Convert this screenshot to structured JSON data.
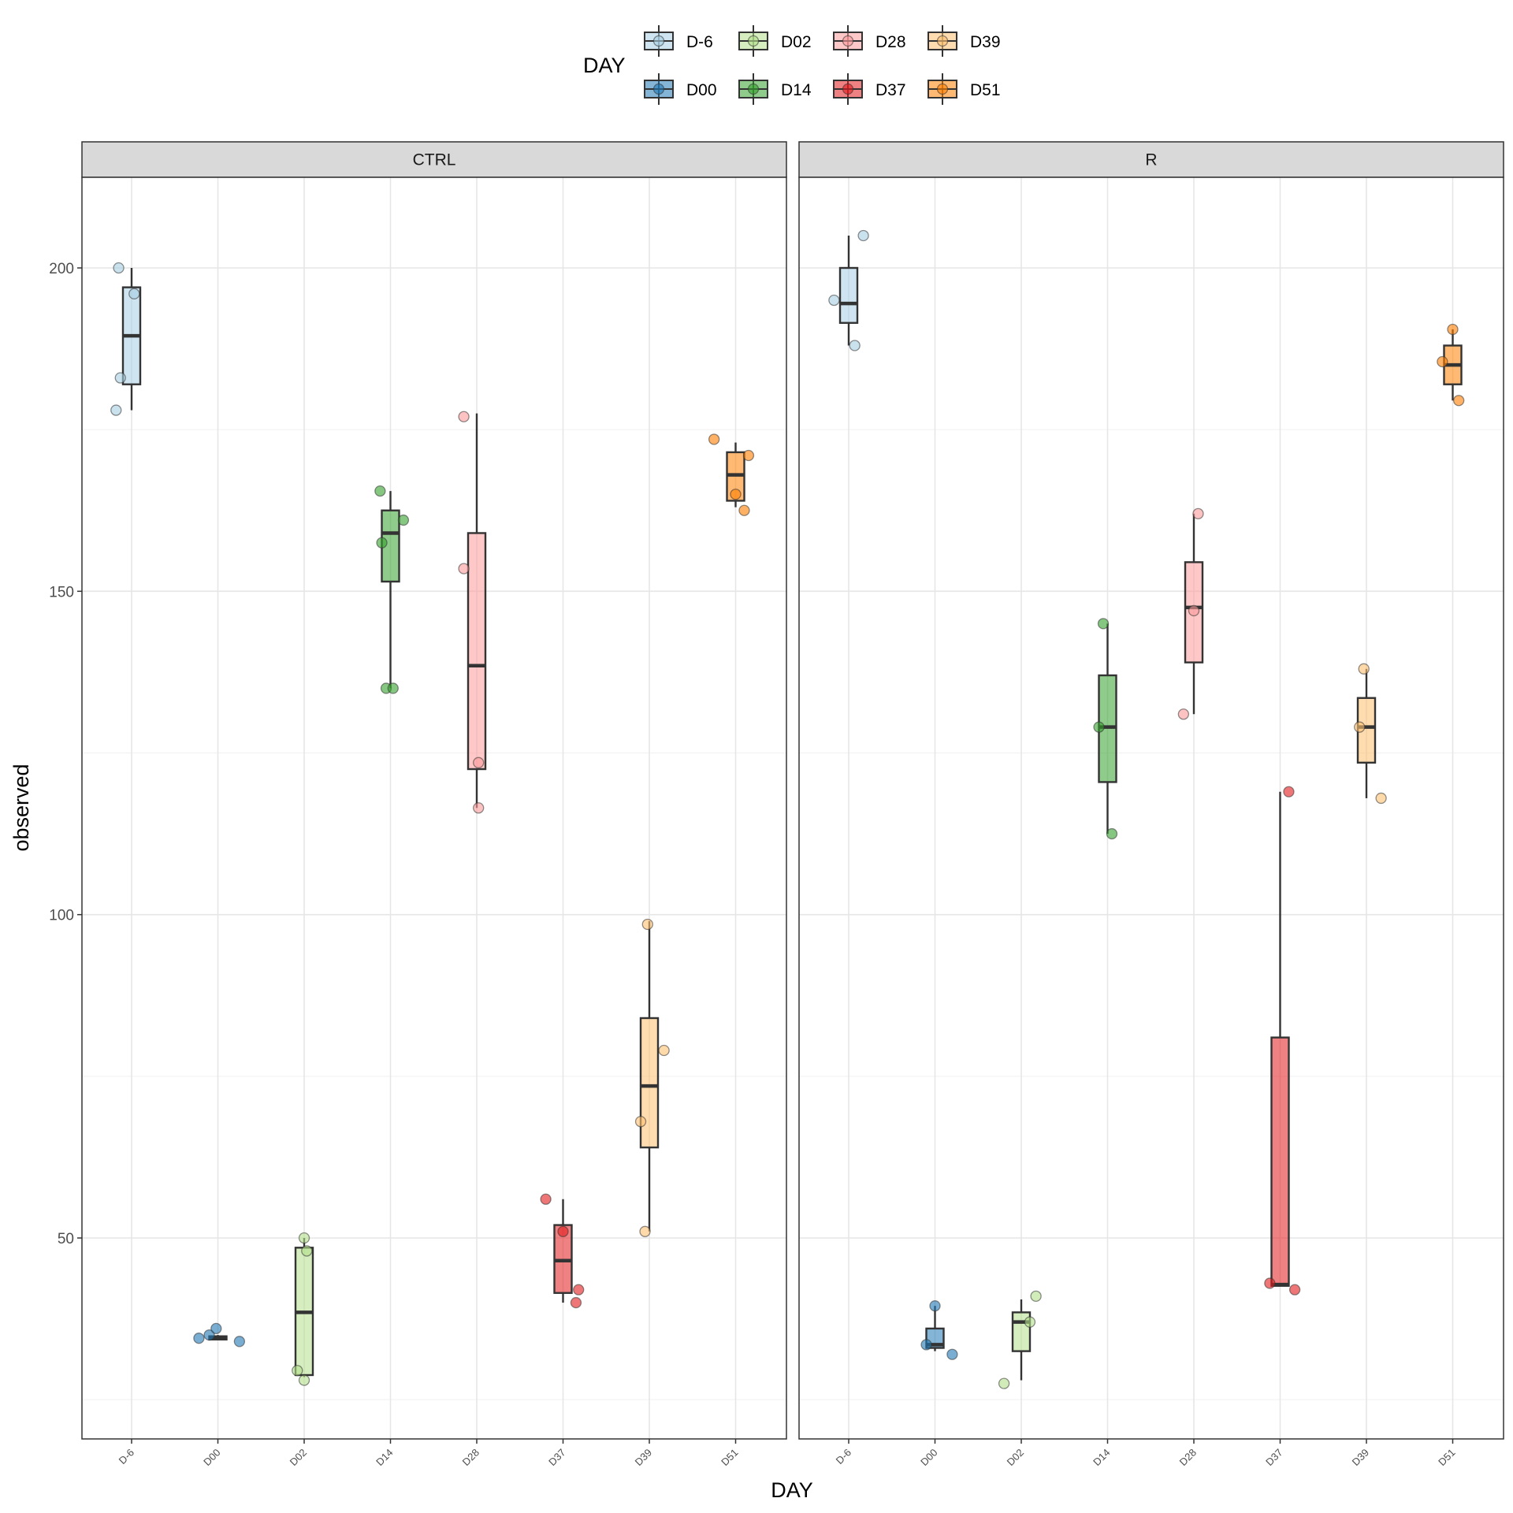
{
  "chart_data": {
    "type": "boxplot",
    "x_label": "DAY",
    "y_label": "observed",
    "y_ticks": [
      50,
      100,
      150,
      200
    ],
    "y_range": [
      18,
      213
    ],
    "legend": {
      "title": "DAY",
      "position": "top",
      "entries": [
        {
          "label": "D-6",
          "color": "#A6CEE3"
        },
        {
          "label": "D00",
          "color": "#1F78B4"
        },
        {
          "label": "D02",
          "color": "#B2DF8A"
        },
        {
          "label": "D14",
          "color": "#33A02C"
        },
        {
          "label": "D28",
          "color": "#FB9A99"
        },
        {
          "label": "D37",
          "color": "#E31A1C"
        },
        {
          "label": "D39",
          "color": "#FDBF6F"
        },
        {
          "label": "D51",
          "color": "#FF7F00"
        }
      ]
    },
    "categories": [
      "D-6",
      "D00",
      "D02",
      "D14",
      "D28",
      "D37",
      "D39",
      "D51"
    ],
    "facets": [
      {
        "name": "CTRL",
        "boxes": [
          {
            "day": "D-6",
            "lower": 178,
            "q1": 182,
            "median": 189.5,
            "q3": 197,
            "upper": 200,
            "points": [
              {
                "off": -0.15,
                "y": 200
              },
              {
                "off": 0.03,
                "y": 196
              },
              {
                "off": -0.13,
                "y": 183
              },
              {
                "off": -0.18,
                "y": 178
              }
            ]
          },
          {
            "day": "D00",
            "lower": 34.2,
            "q1": 34.3,
            "median": 34.5,
            "q3": 34.8,
            "upper": 35,
            "points": [
              {
                "off": -0.1,
                "y": 35
              },
              {
                "off": 0.25,
                "y": 34
              },
              {
                "off": -0.22,
                "y": 34.5
              },
              {
                "off": -0.02,
                "y": 36
              }
            ]
          },
          {
            "day": "D02",
            "lower": 28.5,
            "q1": 28.8,
            "median": 38.5,
            "q3": 48.5,
            "upper": 50,
            "points": [
              {
                "off": 0.0,
                "y": 50
              },
              {
                "off": 0.03,
                "y": 48
              },
              {
                "off": -0.08,
                "y": 29.5
              },
              {
                "off": 0.0,
                "y": 28
              }
            ]
          },
          {
            "day": "D14",
            "lower": 135,
            "q1": 151.5,
            "median": 159,
            "q3": 162.5,
            "upper": 165.5,
            "points": [
              {
                "off": -0.12,
                "y": 165.5
              },
              {
                "off": 0.15,
                "y": 161
              },
              {
                "off": -0.1,
                "y": 157.5
              },
              {
                "off": -0.05,
                "y": 135
              },
              {
                "off": 0.03,
                "y": 135
              }
            ]
          },
          {
            "day": "D28",
            "lower": 116.5,
            "q1": 122.5,
            "median": 138.5,
            "q3": 159,
            "upper": 177.5,
            "points": [
              {
                "off": -0.15,
                "y": 177
              },
              {
                "off": -0.15,
                "y": 153.5
              },
              {
                "off": 0.02,
                "y": 123.5
              },
              {
                "off": 0.02,
                "y": 116.5
              }
            ]
          },
          {
            "day": "D37",
            "lower": 40,
            "q1": 41.5,
            "median": 46.5,
            "q3": 52,
            "upper": 56,
            "points": [
              {
                "off": -0.2,
                "y": 56
              },
              {
                "off": 0.0,
                "y": 51
              },
              {
                "off": 0.18,
                "y": 42
              },
              {
                "off": 0.15,
                "y": 40
              }
            ]
          },
          {
            "day": "D39",
            "lower": 51,
            "q1": 64,
            "median": 73.5,
            "q3": 84,
            "upper": 99,
            "points": [
              {
                "off": -0.02,
                "y": 98.5
              },
              {
                "off": 0.17,
                "y": 79
              },
              {
                "off": -0.1,
                "y": 68
              },
              {
                "off": -0.05,
                "y": 51
              }
            ]
          },
          {
            "day": "D51",
            "lower": 163,
            "q1": 164,
            "median": 168,
            "q3": 171.5,
            "upper": 173,
            "points": [
              {
                "off": -0.25,
                "y": 173.5
              },
              {
                "off": 0.15,
                "y": 171
              },
              {
                "off": 0.0,
                "y": 165
              },
              {
                "off": 0.1,
                "y": 162.5
              }
            ]
          }
        ]
      },
      {
        "name": "R",
        "boxes": [
          {
            "day": "D-6",
            "lower": 188,
            "q1": 191.5,
            "median": 194.5,
            "q3": 200,
            "upper": 205,
            "points": [
              {
                "off": 0.17,
                "y": 205
              },
              {
                "off": -0.17,
                "y": 195
              },
              {
                "off": 0.07,
                "y": 188
              }
            ]
          },
          {
            "day": "D00",
            "lower": 32.5,
            "q1": 33,
            "median": 33.5,
            "q3": 36,
            "upper": 39.5,
            "points": [
              {
                "off": 0.0,
                "y": 39.5
              },
              {
                "off": -0.1,
                "y": 33.5
              },
              {
                "off": 0.2,
                "y": 32
              }
            ]
          },
          {
            "day": "D02",
            "lower": 28,
            "q1": 32.5,
            "median": 37,
            "q3": 38.5,
            "upper": 40.5,
            "points": [
              {
                "off": 0.17,
                "y": 41
              },
              {
                "off": 0.1,
                "y": 37
              },
              {
                "off": -0.2,
                "y": 27.5
              }
            ]
          },
          {
            "day": "D14",
            "lower": 112.5,
            "q1": 120.5,
            "median": 129,
            "q3": 137,
            "upper": 145,
            "points": [
              {
                "off": -0.05,
                "y": 145
              },
              {
                "off": -0.1,
                "y": 129
              },
              {
                "off": 0.05,
                "y": 112.5
              }
            ]
          },
          {
            "day": "D28",
            "lower": 131,
            "q1": 139,
            "median": 147.5,
            "q3": 154.5,
            "upper": 162,
            "points": [
              {
                "off": 0.05,
                "y": 162
              },
              {
                "off": 0.0,
                "y": 147
              },
              {
                "off": -0.12,
                "y": 131
              }
            ]
          },
          {
            "day": "D37",
            "lower": 42.5,
            "q1": 42.6,
            "median": 42.8,
            "q3": 81,
            "upper": 119,
            "points": [
              {
                "off": 0.1,
                "y": 119
              },
              {
                "off": -0.12,
                "y": 43
              },
              {
                "off": 0.17,
                "y": 42
              }
            ]
          },
          {
            "day": "D39",
            "lower": 118,
            "q1": 123.5,
            "median": 129,
            "q3": 133.5,
            "upper": 138,
            "points": [
              {
                "off": -0.03,
                "y": 138
              },
              {
                "off": -0.08,
                "y": 129
              },
              {
                "off": 0.17,
                "y": 118
              }
            ]
          },
          {
            "day": "D51",
            "lower": 179.5,
            "q1": 182,
            "median": 185,
            "q3": 188,
            "upper": 190.5,
            "points": [
              {
                "off": 0.0,
                "y": 190.5
              },
              {
                "off": -0.12,
                "y": 185.5
              },
              {
                "off": 0.07,
                "y": 179.5
              }
            ]
          }
        ]
      }
    ]
  }
}
